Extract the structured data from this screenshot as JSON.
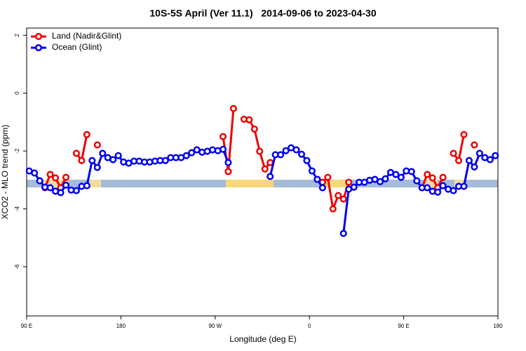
{
  "chart_data": {
    "type": "line",
    "title": "10S-5S April (Ver 11.1)   2014-09-06 to 2023-04-30",
    "x_label": "Longitude (deg E)",
    "y_label": "XCO2 - MLO trend (ppm)",
    "xlim": [
      90,
      540
    ],
    "ylim": [
      -7.7,
      2.25
    ],
    "xticks": [
      {
        "value": 90,
        "label": "90 E"
      },
      180,
      {
        "value": 270,
        "label": "90 W"
      },
      {
        "value": 360,
        "label": "0"
      },
      {
        "value": 450,
        "label": "90 E"
      },
      {
        "value": 540,
        "label": "180"
      }
    ],
    "yticks": [
      2,
      0,
      -2,
      -4,
      -6
    ],
    "legend_position": "top-left",
    "x": [
      92.5,
      97.5,
      102.5,
      107.5,
      112.5,
      117.5,
      122.5,
      127.5,
      132.5,
      137.5,
      142.5,
      147.5,
      152.5,
      157.5,
      162.5,
      167.5,
      172.5,
      177.5,
      182.5,
      187.5,
      192.5,
      197.5,
      202.5,
      207.5,
      212.5,
      217.5,
      222.5,
      227.5,
      232.5,
      237.5,
      242.5,
      247.5,
      252.5,
      257.5,
      262.5,
      267.5,
      272.5,
      277.5,
      282.5,
      287.5,
      292.5,
      297.5,
      302.5,
      307.5,
      312.5,
      317.5,
      322.5,
      327.5,
      332.5,
      337.5,
      342.5,
      347.5,
      352.5,
      357.5,
      362.5,
      367.5,
      372.5,
      377.5,
      382.5,
      387.5,
      392.5,
      397.5,
      402.5,
      407.5,
      412.5,
      417.5,
      422.5,
      427.5,
      432.5,
      437.5,
      442.5,
      447.5,
      452.5,
      457.5,
      462.5,
      467.5,
      472.5,
      477.5,
      482.5,
      487.5,
      492.5,
      497.5,
      502.5,
      507.5,
      512.5,
      517.5,
      522.5,
      527.5,
      532.5,
      537.5
    ],
    "series": [
      {
        "name": "Land (Nadir&Glint)",
        "color": "#ee0000",
        "values": [
          null,
          null,
          null,
          -3.27,
          -2.81,
          -2.93,
          -3.27,
          -2.91,
          null,
          -2.08,
          -2.33,
          -1.43,
          null,
          -1.79,
          null,
          null,
          null,
          null,
          null,
          null,
          null,
          null,
          null,
          null,
          null,
          null,
          null,
          null,
          null,
          null,
          null,
          null,
          null,
          null,
          null,
          null,
          null,
          -1.5,
          -2.71,
          -0.53,
          null,
          -0.9,
          -0.92,
          -1.24,
          -2.01,
          -2.62,
          -2.4,
          null,
          null,
          null,
          null,
          null,
          null,
          null,
          null,
          null,
          -3.08,
          -2.91,
          -4.0,
          -3.54,
          -3.66,
          -3.08,
          null,
          null,
          null,
          null,
          null,
          null,
          null,
          null,
          null,
          null,
          null,
          null,
          null,
          -3.27,
          -2.81,
          -2.93,
          -3.27,
          -2.91,
          null,
          -2.08,
          -2.33,
          -1.43,
          null,
          -1.79,
          null,
          null,
          null,
          null
        ]
      },
      {
        "name": "Ocean (Glint)",
        "color": "#0000ee",
        "values": [
          -2.69,
          -2.76,
          -3.03,
          -3.25,
          -3.27,
          -3.39,
          -3.44,
          -3.18,
          -3.35,
          -3.37,
          -3.22,
          -3.2,
          -2.33,
          -2.57,
          -2.08,
          -2.23,
          -2.3,
          -2.16,
          -2.38,
          -2.42,
          -2.35,
          -2.35,
          -2.38,
          -2.38,
          -2.35,
          -2.33,
          -2.33,
          -2.23,
          -2.23,
          -2.23,
          -2.16,
          -2.06,
          -1.96,
          -2.04,
          -2.01,
          -1.96,
          -1.99,
          -1.94,
          -2.4,
          null,
          null,
          null,
          null,
          null,
          null,
          null,
          -2.88,
          -2.13,
          -2.13,
          -1.99,
          -1.89,
          -1.96,
          -2.11,
          -2.33,
          -2.69,
          -2.98,
          -3.27,
          null,
          null,
          null,
          -4.85,
          -3.32,
          -3.25,
          -3.08,
          -3.08,
          -3.01,
          -2.98,
          -3.06,
          -2.96,
          -2.74,
          -2.81,
          -2.91,
          -2.69,
          -2.71,
          -3.03,
          -3.27,
          -3.27,
          -3.39,
          -3.42,
          -3.2,
          -3.32,
          -3.37,
          -3.22,
          -3.22,
          -2.33,
          -2.55,
          -2.08,
          -2.23,
          -2.3,
          -2.16
        ]
      }
    ]
  }
}
